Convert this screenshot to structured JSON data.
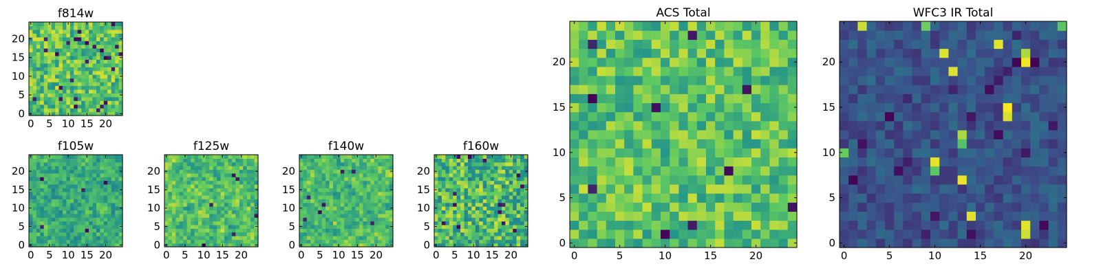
{
  "figure": {
    "colormap": "viridis",
    "colormap_stops": [
      "#440154",
      "#3b528b",
      "#21918c",
      "#5ec962",
      "#fde725"
    ]
  },
  "chart_data": [
    {
      "type": "heatmap",
      "title": "f814w",
      "grid_size": 25,
      "xlim": [
        -0.5,
        24.5
      ],
      "ylim": [
        -0.5,
        24.5
      ],
      "grid": false,
      "xticks": [
        "0",
        "5",
        "10",
        "15",
        "20"
      ],
      "yticks": [
        "0",
        "5",
        "10",
        "15",
        "20"
      ],
      "seed": 11,
      "base": 0.72,
      "spread": 0.22,
      "smooth": 0,
      "dark_spots": 26,
      "bright_spots": 0
    },
    {
      "type": "heatmap",
      "title": "f105w",
      "grid_size": 25,
      "xlim": [
        -0.5,
        24.5
      ],
      "ylim": [
        -0.5,
        24.5
      ],
      "grid": false,
      "xticks": [
        "0",
        "5",
        "10",
        "15",
        "20"
      ],
      "yticks": [
        "0",
        "5",
        "10",
        "15",
        "20"
      ],
      "seed": 23,
      "base": 0.62,
      "spread": 0.22,
      "smooth": 1,
      "dark_spots": 5,
      "bright_spots": 0
    },
    {
      "type": "heatmap",
      "title": "f125w",
      "grid_size": 25,
      "xlim": [
        -0.5,
        24.5
      ],
      "ylim": [
        -0.5,
        24.5
      ],
      "grid": false,
      "xticks": [
        "0",
        "5",
        "10",
        "15",
        "20"
      ],
      "yticks": [
        "0",
        "5",
        "10",
        "15",
        "20"
      ],
      "seed": 37,
      "base": 0.7,
      "spread": 0.26,
      "smooth": 1,
      "dark_spots": 6,
      "bright_spots": 0
    },
    {
      "type": "heatmap",
      "title": "f140w",
      "grid_size": 25,
      "xlim": [
        -0.5,
        24.5
      ],
      "ylim": [
        -0.5,
        24.5
      ],
      "grid": false,
      "xticks": [
        "0",
        "5",
        "10",
        "15",
        "20"
      ],
      "yticks": [
        "0",
        "5",
        "10",
        "15",
        "20"
      ],
      "seed": 41,
      "base": 0.68,
      "spread": 0.24,
      "smooth": 1,
      "dark_spots": 7,
      "bright_spots": 0
    },
    {
      "type": "heatmap",
      "title": "f160w",
      "grid_size": 25,
      "xlim": [
        -0.5,
        24.5
      ],
      "ylim": [
        -0.5,
        24.5
      ],
      "grid": false,
      "xticks": [
        "0",
        "5",
        "10",
        "15",
        "20"
      ],
      "yticks": [
        "0",
        "5",
        "10",
        "15",
        "20"
      ],
      "seed": 53,
      "base": 0.68,
      "spread": 0.26,
      "smooth": 0,
      "dark_spots": 14,
      "bright_spots": 0
    },
    {
      "type": "heatmap",
      "title": "ACS Total",
      "grid_size": 25,
      "xlim": [
        -0.5,
        24.5
      ],
      "ylim": [
        -0.5,
        24.5
      ],
      "grid": false,
      "xticks": [
        "0",
        "5",
        "10",
        "15",
        "20"
      ],
      "yticks": [
        "0",
        "5",
        "10",
        "15",
        "20"
      ],
      "seed": 67,
      "base": 0.72,
      "spread": 0.2,
      "smooth": 0,
      "dark_spots": 10,
      "bright_spots": 0
    },
    {
      "type": "heatmap",
      "title": "WFC3 IR Total",
      "grid_size": 25,
      "xlim": [
        -0.5,
        24.5
      ],
      "ylim": [
        -0.5,
        24.5
      ],
      "grid": false,
      "xticks": [
        "0",
        "5",
        "10",
        "15",
        "20"
      ],
      "yticks": [
        "0",
        "5",
        "10",
        "15",
        "20"
      ],
      "seed": 79,
      "base": 0.26,
      "spread": 0.1,
      "smooth": 0,
      "dark_spots": 22,
      "bright_spots": 14
    }
  ]
}
